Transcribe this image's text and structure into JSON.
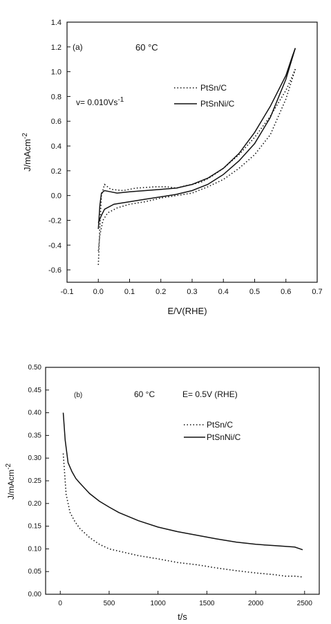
{
  "chart_data": [
    {
      "type": "line",
      "panel_label": "(a)",
      "temperature_label": "60 °C",
      "condition_label": "v= 0.010Vs",
      "condition_sup": "-1",
      "xlabel": "E/V(RHE)",
      "ylabel": "J/mAcm",
      "ylabel_sup": "-2",
      "xlim": [
        -0.1,
        0.7
      ],
      "ylim": [
        -0.7,
        1.4
      ],
      "xticks": [
        "-0.1",
        "0.0",
        "0.1",
        "0.2",
        "0.3",
        "0.4",
        "0.5",
        "0.6",
        "0.7"
      ],
      "yticks": [
        "-0.6",
        "-0.4",
        "-0.2",
        "0.0",
        "0.2",
        "0.4",
        "0.6",
        "0.8",
        "1.0",
        "1.2",
        "1.4"
      ],
      "legend_position": "upper-right",
      "series": [
        {
          "name": "PtSn/C",
          "style": "dotted",
          "forward": {
            "x": [
              0.0,
              0.005,
              0.01,
              0.02,
              0.04,
              0.08,
              0.12,
              0.18,
              0.22,
              0.25,
              0.28,
              0.3,
              0.33,
              0.36,
              0.4,
              0.45,
              0.5,
              0.55,
              0.6,
              0.62,
              0.63
            ],
            "y": [
              -0.56,
              -0.25,
              0.0,
              0.09,
              0.05,
              0.04,
              0.06,
              0.07,
              0.07,
              0.06,
              0.08,
              0.09,
              0.11,
              0.15,
              0.22,
              0.33,
              0.47,
              0.64,
              0.85,
              0.96,
              1.02
            ]
          },
          "backward": {
            "x": [
              0.63,
              0.6,
              0.55,
              0.5,
              0.45,
              0.4,
              0.35,
              0.3,
              0.25,
              0.2,
              0.15,
              0.1,
              0.06,
              0.03,
              0.015,
              0.005,
              0.0
            ],
            "y": [
              1.02,
              0.78,
              0.49,
              0.33,
              0.22,
              0.13,
              0.07,
              0.02,
              0.0,
              -0.02,
              -0.05,
              -0.07,
              -0.1,
              -0.14,
              -0.2,
              -0.32,
              -0.45
            ]
          }
        },
        {
          "name": "PtSnNi/C",
          "style": "solid",
          "forward": {
            "x": [
              0.0,
              0.005,
              0.01,
              0.02,
              0.04,
              0.06,
              0.1,
              0.15,
              0.2,
              0.25,
              0.3,
              0.35,
              0.4,
              0.45,
              0.5,
              0.55,
              0.6,
              0.62,
              0.63
            ],
            "y": [
              -0.27,
              -0.08,
              0.02,
              0.04,
              0.03,
              0.02,
              0.03,
              0.04,
              0.05,
              0.06,
              0.09,
              0.14,
              0.22,
              0.34,
              0.51,
              0.72,
              0.97,
              1.12,
              1.19
            ]
          },
          "backward": {
            "x": [
              0.63,
              0.6,
              0.55,
              0.5,
              0.45,
              0.4,
              0.35,
              0.3,
              0.25,
              0.2,
              0.15,
              0.1,
              0.05,
              0.02,
              0.01,
              0.0
            ],
            "y": [
              1.19,
              0.94,
              0.63,
              0.42,
              0.28,
              0.17,
              0.09,
              0.04,
              0.01,
              -0.01,
              -0.03,
              -0.05,
              -0.07,
              -0.11,
              -0.16,
              -0.22
            ]
          }
        }
      ]
    },
    {
      "type": "line",
      "panel_label": "(b)",
      "temperature_label": "60 °C",
      "condition_label": "E= 0.5V (RHE)",
      "xlabel": "t/s",
      "ylabel": "J/mAcm",
      "ylabel_sup": "-2",
      "xlim": [
        -150,
        2650
      ],
      "ylim": [
        0.0,
        0.5
      ],
      "xticks": [
        "0",
        "500",
        "1000",
        "1500",
        "2000",
        "2500"
      ],
      "yticks": [
        "0.00",
        "0.05",
        "0.10",
        "0.15",
        "0.20",
        "0.25",
        "0.30",
        "0.35",
        "0.40",
        "0.45",
        "0.50"
      ],
      "legend_position": "upper-right",
      "series": [
        {
          "name": "PtSn/C",
          "style": "dotted",
          "x": [
            30,
            60,
            100,
            150,
            200,
            300,
            400,
            500,
            600,
            800,
            1000,
            1200,
            1400,
            1600,
            1800,
            2000,
            2200,
            2300,
            2400,
            2480
          ],
          "y": [
            0.31,
            0.22,
            0.18,
            0.16,
            0.145,
            0.125,
            0.11,
            0.1,
            0.095,
            0.085,
            0.078,
            0.07,
            0.065,
            0.058,
            0.052,
            0.047,
            0.043,
            0.04,
            0.04,
            0.038
          ]
        },
        {
          "name": "PtSnNi/C",
          "style": "solid",
          "x": [
            30,
            50,
            80,
            120,
            160,
            200,
            300,
            400,
            500,
            600,
            800,
            1000,
            1200,
            1400,
            1600,
            1800,
            2000,
            2200,
            2400,
            2480
          ],
          "y": [
            0.4,
            0.34,
            0.29,
            0.27,
            0.255,
            0.245,
            0.222,
            0.205,
            0.192,
            0.18,
            0.162,
            0.148,
            0.138,
            0.13,
            0.122,
            0.115,
            0.11,
            0.107,
            0.104,
            0.098
          ]
        }
      ]
    }
  ]
}
